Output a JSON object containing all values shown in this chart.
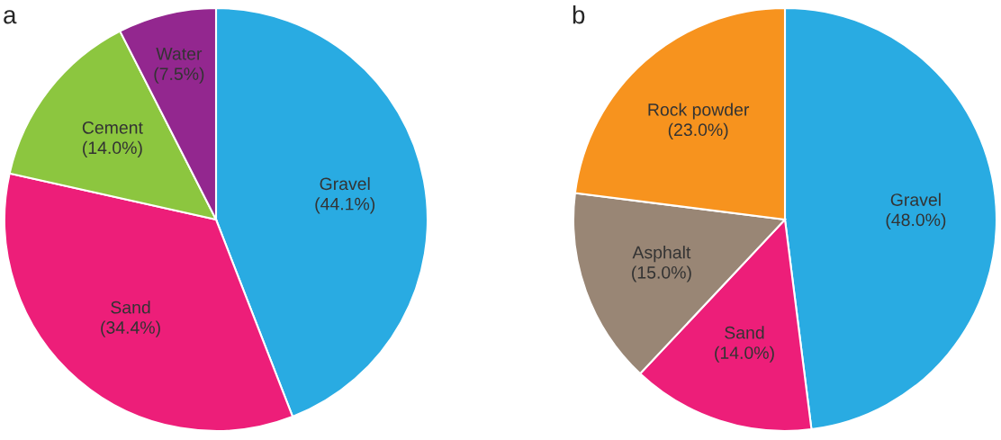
{
  "chart_data": [
    {
      "type": "pie",
      "title": "a",
      "categories": [
        "Gravel",
        "Sand",
        "Cement",
        "Water"
      ],
      "values": [
        44.1,
        34.4,
        14.0,
        7.5
      ],
      "value_labels": [
        "(44.1%)",
        "(34.4%)",
        "(14.0%)",
        "(7.5%)"
      ],
      "colors": [
        "#29abe2",
        "#ed1e79",
        "#8cc63f",
        "#93278f"
      ],
      "legend": false
    },
    {
      "type": "pie",
      "title": "b",
      "categories": [
        "Gravel",
        "Sand",
        "Asphalt",
        "Rock powder"
      ],
      "values": [
        48.0,
        14.0,
        15.0,
        23.0
      ],
      "value_labels": [
        "(48.0%)",
        "(14.0%)",
        "(15.0%)",
        "(23.0%)"
      ],
      "colors": [
        "#29abe2",
        "#ed1e79",
        "#998675",
        "#f7931e"
      ],
      "legend": false
    }
  ]
}
